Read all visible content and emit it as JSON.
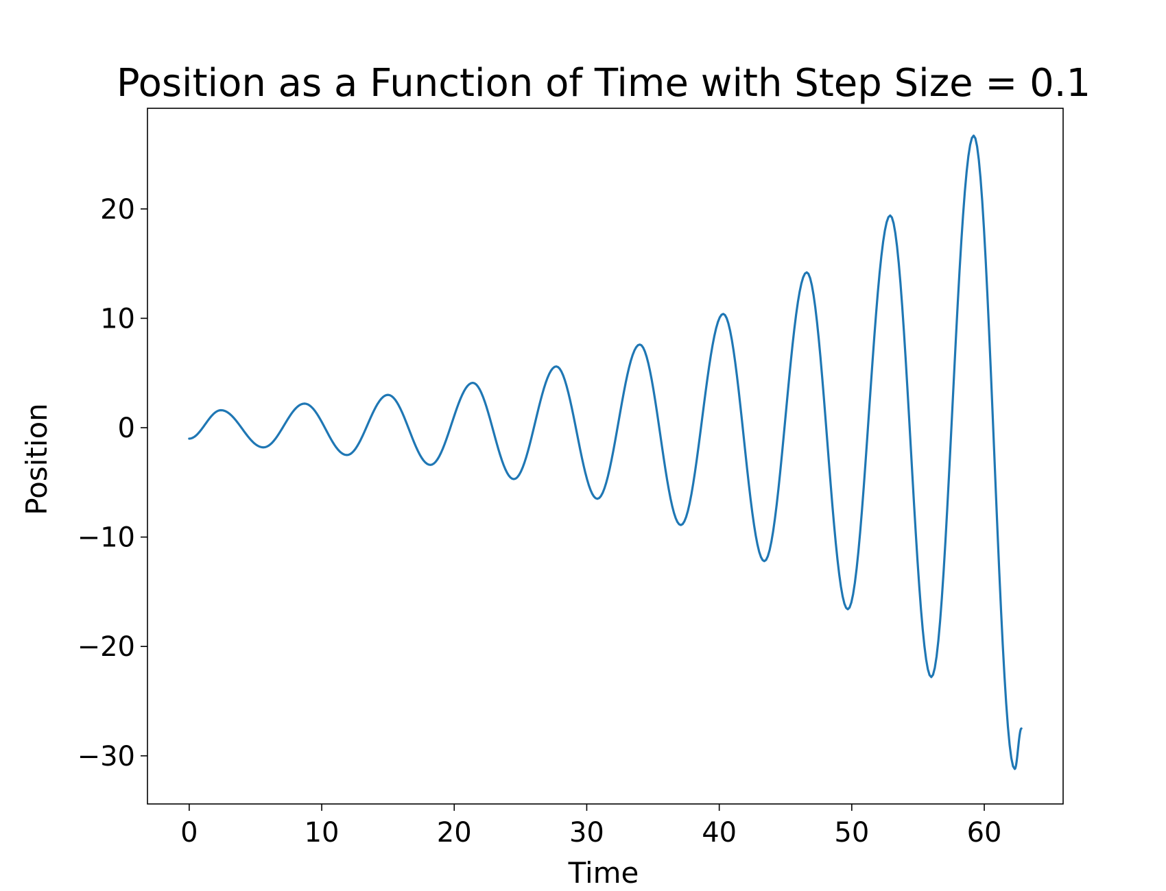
{
  "chart_data": {
    "type": "line",
    "title": "Position as a Function of Time with Step Size = 0.1",
    "xlabel": "Time",
    "ylabel": "Position",
    "xlim": [
      -3.15,
      65.95
    ],
    "ylim": [
      -34.4,
      29.2
    ],
    "grid": false,
    "legend": "none",
    "line_color": "#1f77b4",
    "x_ticks": [
      0,
      10,
      20,
      30,
      40,
      50,
      60
    ],
    "x_tick_labels": [
      "0",
      "10",
      "20",
      "30",
      "40",
      "50",
      "60"
    ],
    "y_ticks": [
      -30,
      -20,
      -10,
      0,
      10,
      20
    ],
    "y_tick_labels": [
      "−30",
      "−20",
      "−10",
      "0",
      "10",
      "20"
    ],
    "series": [
      {
        "x": [
          0.0,
          2.4,
          5.6,
          8.7,
          11.9,
          15.0,
          18.2,
          21.4,
          24.5,
          27.7,
          30.8,
          34.0,
          37.1,
          40.3,
          43.4,
          46.6,
          49.7,
          52.9,
          56.0,
          59.2,
          62.3,
          62.8
        ],
        "values": [
          -1.0,
          1.6,
          -1.8,
          2.2,
          -2.5,
          3.0,
          -3.4,
          4.1,
          -4.7,
          5.6,
          -6.5,
          7.6,
          -8.9,
          10.4,
          -12.2,
          14.2,
          -16.6,
          19.4,
          -22.8,
          26.7,
          -31.2,
          -27.5
        ]
      }
    ]
  }
}
